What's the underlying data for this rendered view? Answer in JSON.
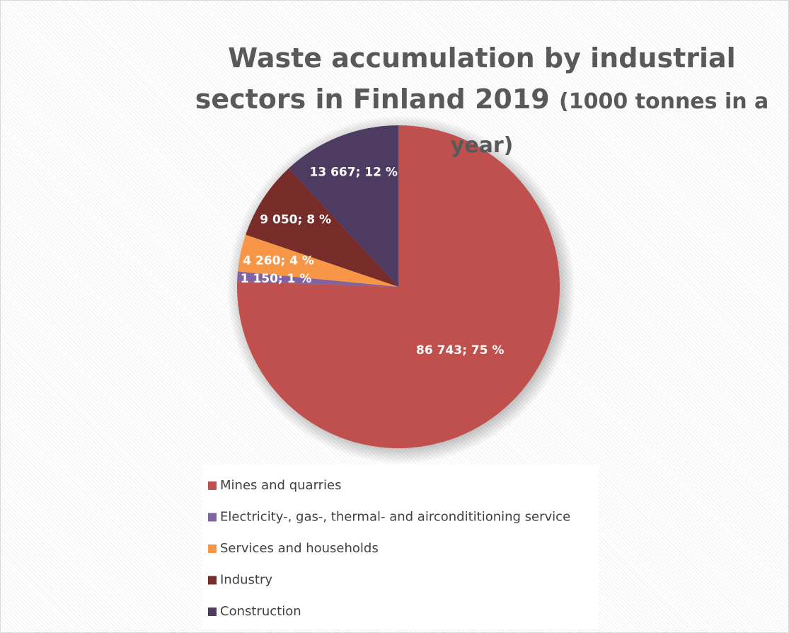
{
  "chart_data": {
    "type": "pie",
    "title": "Waste accumulation by industrial sectors in Finland 2019",
    "subtitle": "(1000 tonnes in a year)",
    "categories": [
      "Mines and quarries",
      "Electricity-, gas-, thermal- and airconditi­tioning service",
      "Services and households",
      "Industry",
      "Construction"
    ],
    "values": [
      86743,
      1150,
      4260,
      9050,
      13667
    ],
    "value_labels": [
      "86 743; 75 %",
      "1 150; 1 %",
      "4 260; 4 %",
      "9 050; 8 %",
      "13 667; 12 %"
    ],
    "colors": [
      "#c0504d",
      "#8064a2",
      "#f79646",
      "#772c2a",
      "#4d3b62"
    ],
    "legend": "bottom"
  }
}
